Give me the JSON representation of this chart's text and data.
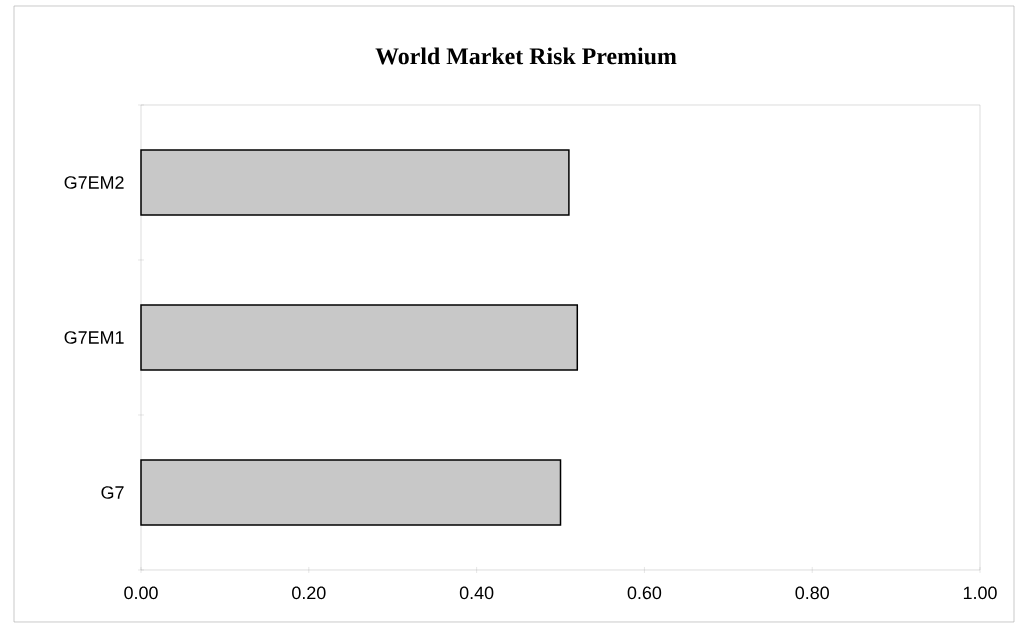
{
  "chart_data": {
    "type": "bar",
    "orientation": "horizontal",
    "title": "World Market Risk Premium",
    "categories": [
      "G7EM2",
      "G7EM1",
      "G7"
    ],
    "values": [
      0.51,
      0.52,
      0.5
    ],
    "color": "#c8c8c8",
    "xlim": [
      0,
      1
    ],
    "xticks": [
      {
        "value": 0,
        "label": "0.00"
      },
      {
        "value": 0.2,
        "label": "0.20"
      },
      {
        "value": 0.4,
        "label": "0.40"
      },
      {
        "value": 0.6,
        "label": "0.60"
      },
      {
        "value": 0.8,
        "label": "0.80"
      },
      {
        "value": 1,
        "label": "1.00"
      }
    ],
    "grid": false
  }
}
